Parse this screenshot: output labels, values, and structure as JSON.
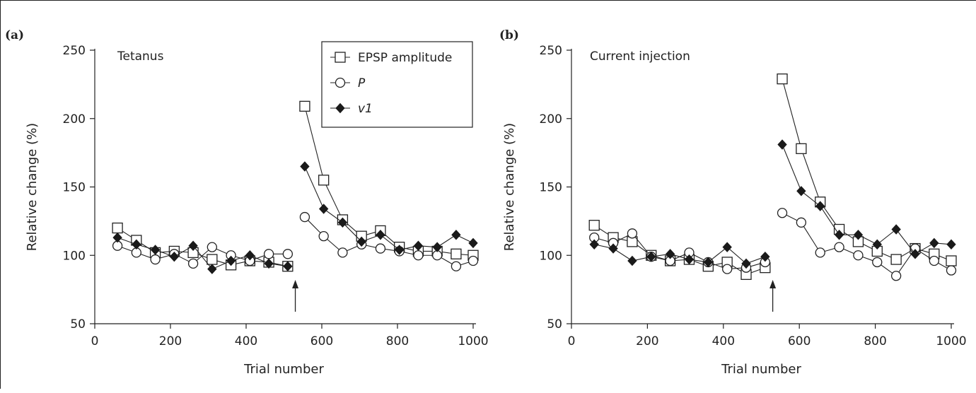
{
  "figure": {
    "tags": [
      "(a)",
      "(b)"
    ]
  },
  "chart_data": [
    {
      "type": "line",
      "panel": "(a)",
      "title": "Tetanus",
      "xlabel": "Trial number",
      "ylabel": "Relative change (%)",
      "xlim": [
        0,
        1000
      ],
      "ylim": [
        50,
        250
      ],
      "xticks": [
        0,
        200,
        400,
        600,
        800,
        1000
      ],
      "yticks": [
        50,
        100,
        150,
        200,
        250
      ],
      "grid": false,
      "stimulus_arrow_x": 530,
      "legend": {
        "placement": "top-right",
        "entries": [
          "EPSP amplitude",
          "P",
          "v1"
        ]
      },
      "series": [
        {
          "name": "EPSP amplitude",
          "marker": "open-square",
          "x": [
            60,
            110,
            160,
            210,
            260,
            310,
            360,
            410,
            460,
            510,
            555,
            605,
            655,
            705,
            755,
            805,
            855,
            905,
            955,
            1000
          ],
          "y": [
            120,
            111,
            102,
            103,
            102,
            97,
            93,
            96,
            95,
            92,
            209,
            155,
            126,
            114,
            118,
            106,
            103,
            103,
            101,
            100
          ]
        },
        {
          "name": "P",
          "marker": "open-circle",
          "x": [
            60,
            110,
            160,
            210,
            260,
            310,
            360,
            410,
            460,
            510,
            555,
            605,
            655,
            705,
            755,
            805,
            855,
            905,
            955,
            1000
          ],
          "y": [
            107,
            102,
            97,
            101,
            94,
            106,
            100,
            96,
            101,
            101,
            128,
            114,
            102,
            108,
            105,
            103,
            100,
            100,
            92,
            96
          ]
        },
        {
          "name": "v1",
          "marker": "filled-diamond",
          "x": [
            60,
            110,
            160,
            210,
            260,
            310,
            360,
            410,
            460,
            510,
            555,
            605,
            655,
            705,
            755,
            805,
            855,
            905,
            955,
            1000
          ],
          "y": [
            113,
            108,
            104,
            99,
            107,
            90,
            96,
            100,
            94,
            92,
            165,
            134,
            124,
            110,
            115,
            104,
            107,
            106,
            115,
            109
          ]
        }
      ]
    },
    {
      "type": "line",
      "panel": "(b)",
      "title": "Current injection",
      "xlabel": "Trial number",
      "ylabel": "Relative change (%)",
      "xlim": [
        0,
        1000
      ],
      "ylim": [
        50,
        250
      ],
      "xticks": [
        0,
        200,
        400,
        600,
        800,
        1000
      ],
      "yticks": [
        50,
        100,
        150,
        200,
        250
      ],
      "grid": false,
      "stimulus_arrow_x": 530,
      "series": [
        {
          "name": "EPSP amplitude",
          "marker": "open-square",
          "x": [
            60,
            110,
            160,
            210,
            260,
            310,
            360,
            410,
            460,
            510,
            555,
            605,
            655,
            705,
            755,
            805,
            855,
            905,
            955,
            1000
          ],
          "y": [
            122,
            113,
            110,
            100,
            96,
            97,
            92,
            95,
            86,
            91,
            229,
            178,
            139,
            119,
            110,
            103,
            97,
            105,
            101,
            96
          ]
        },
        {
          "name": "P",
          "marker": "open-circle",
          "x": [
            60,
            110,
            160,
            210,
            260,
            310,
            360,
            410,
            460,
            510,
            555,
            605,
            655,
            705,
            755,
            805,
            855,
            905,
            955,
            1000
          ],
          "y": [
            113,
            109,
            116,
            99,
            96,
            102,
            95,
            90,
            91,
            95,
            131,
            124,
            102,
            106,
            100,
            95,
            85,
            105,
            96,
            89
          ]
        },
        {
          "name": "v1",
          "marker": "filled-diamond",
          "x": [
            60,
            110,
            160,
            210,
            260,
            310,
            360,
            410,
            460,
            510,
            555,
            605,
            655,
            705,
            755,
            805,
            855,
            905,
            955,
            1000
          ],
          "y": [
            108,
            105,
            96,
            99,
            101,
            97,
            95,
            106,
            94,
            99,
            181,
            147,
            136,
            115,
            115,
            108,
            119,
            101,
            109,
            108
          ]
        }
      ]
    }
  ]
}
